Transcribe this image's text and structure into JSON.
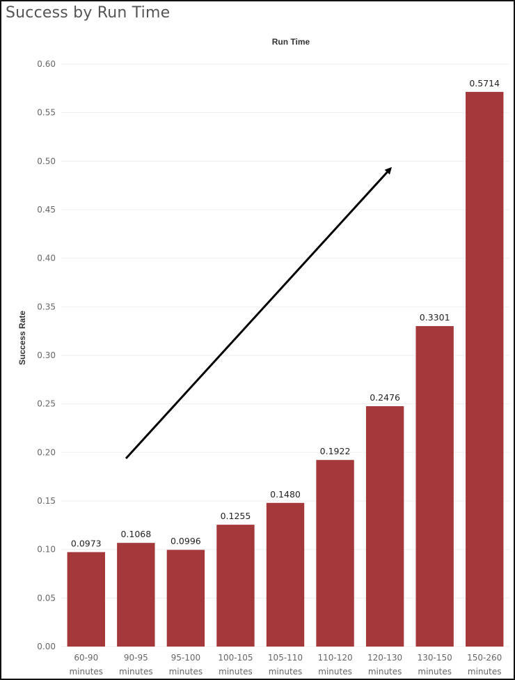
{
  "colors": {
    "bar": "#a4383a",
    "gridline": "#eeeeee",
    "arrow": "#000000"
  },
  "chart_data": {
    "type": "bar",
    "title": "Success by Run Time",
    "xlabel": "Run Time",
    "ylabel": "Success Rate",
    "ylim": [
      0,
      0.6
    ],
    "yticks": [
      "0.00",
      "0.05",
      "0.10",
      "0.15",
      "0.20",
      "0.25",
      "0.30",
      "0.35",
      "0.40",
      "0.45",
      "0.50",
      "0.55",
      "0.60"
    ],
    "categories": [
      [
        "60-90",
        "minutes"
      ],
      [
        "90-95",
        "minutes"
      ],
      [
        "95-100",
        "minutes"
      ],
      [
        "100-105",
        "minutes"
      ],
      [
        "105-110",
        "minutes"
      ],
      [
        "110-120",
        "minutes"
      ],
      [
        "120-130",
        "minutes"
      ],
      [
        "130-150",
        "minutes"
      ],
      [
        "150-260",
        "minutes"
      ]
    ],
    "values": [
      0.0973,
      0.1068,
      0.0996,
      0.1255,
      0.148,
      0.1922,
      0.2476,
      0.3301,
      0.5714
    ],
    "data_labels": [
      "0.0973",
      "0.1068",
      "0.0996",
      "0.1255",
      "0.1480",
      "0.1922",
      "0.2476",
      "0.3301",
      "0.5714"
    ],
    "grid": true,
    "annotation": "upward trend arrow"
  }
}
